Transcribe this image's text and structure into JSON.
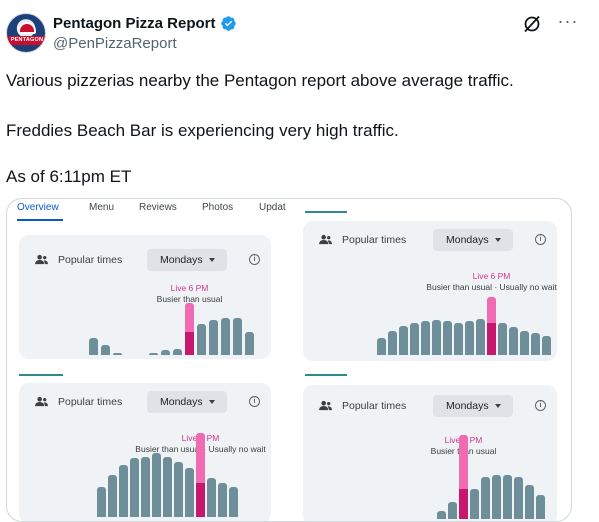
{
  "header": {
    "display_name": "Pentagon Pizza Report",
    "handle": "@PenPizzaReport",
    "avatar_text": "PENTAGON",
    "verified_icon": "verified-badge-icon",
    "grok_icon": "grok-icon",
    "more_label": "···"
  },
  "tweet": {
    "line1": "Various pizzerias nearby the Pentagon report above average traffic.",
    "line2": "Freddies Beach Bar is experiencing very high traffic.",
    "line3": "As of 6:11pm ET"
  },
  "media": {
    "tabs": [
      {
        "label": "Overview",
        "active": true
      },
      {
        "label": "Menu",
        "active": false
      },
      {
        "label": "Reviews",
        "active": false
      },
      {
        "label": "Photos",
        "active": false
      },
      {
        "label": "Updat",
        "active": false
      }
    ],
    "panels": [
      {
        "title": "Popular times",
        "day": "Mondays",
        "live": "Live 6 PM",
        "status": "Busier than usual",
        "bars": [
          0.32,
          0.2,
          0.04,
          0,
          0,
          0.04,
          0.1,
          0.12,
          1.0,
          0.6,
          0.68,
          0.72,
          0.72,
          0.44
        ],
        "live_index": 8,
        "live_usual": 0.44
      },
      {
        "title": "Popular times",
        "day": "Mondays",
        "live": "Live 6 PM",
        "status": "Busier than usual · Usually no wait",
        "bars": [
          0.3,
          0.42,
          0.5,
          0.55,
          0.58,
          0.6,
          0.58,
          0.55,
          0.58,
          0.62,
          1.0,
          0.55,
          0.48,
          0.42,
          0.38,
          0.32
        ],
        "live_index": 10,
        "live_usual": 0.55
      },
      {
        "title": "Popular times",
        "day": "Mondays",
        "live": "Live 6 PM",
        "status": "Busier than usual · Usually no wait",
        "bars": [
          0.36,
          0.5,
          0.62,
          0.7,
          0.72,
          0.76,
          0.72,
          0.66,
          0.58,
          1.0,
          0.46,
          0.4,
          0.36
        ],
        "live_index": 9,
        "live_usual": 0.4
      },
      {
        "title": "Popular times",
        "day": "Mondays",
        "live": "Live 6 PM",
        "status": "Busier than usual",
        "bars": [
          0.1,
          0.2,
          1.0,
          0.36,
          0.5,
          0.52,
          0.52,
          0.5,
          0.4,
          0.28
        ],
        "live_index": 2,
        "live_usual": 0.36
      }
    ]
  },
  "colors": {
    "bar": "#6e8f99",
    "live_bar": "#f06bb1",
    "live_usual": "#c8176f",
    "live_text": "#d6338f",
    "tab_active": "#0b57d0"
  }
}
